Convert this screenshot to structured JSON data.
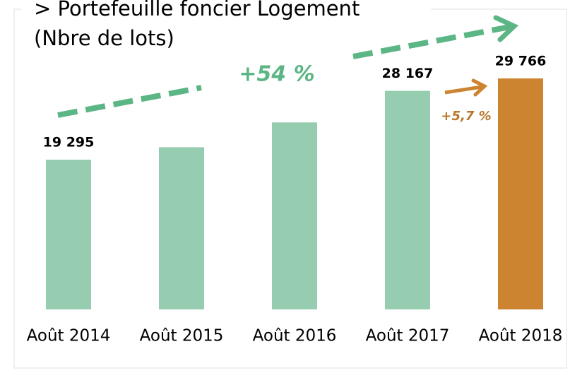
{
  "chart_data": {
    "type": "bar",
    "title": [
      "> Portefeuille foncier Logement",
      "(Nbre de lots)"
    ],
    "categories": [
      "Août 2014",
      "Août 2015",
      "Août 2016",
      "Août 2017",
      "Août 2018"
    ],
    "values": [
      19295,
      20900,
      24100,
      28167,
      29766
    ],
    "value_labels": [
      "19 295",
      null,
      null,
      "28 167",
      "29 766"
    ],
    "colors": [
      "#96cdb0",
      "#96cdb0",
      "#96cdb0",
      "#96cdb0",
      "#cd8430"
    ],
    "annotations": [
      "+54 %",
      "+5,7 %"
    ]
  }
}
